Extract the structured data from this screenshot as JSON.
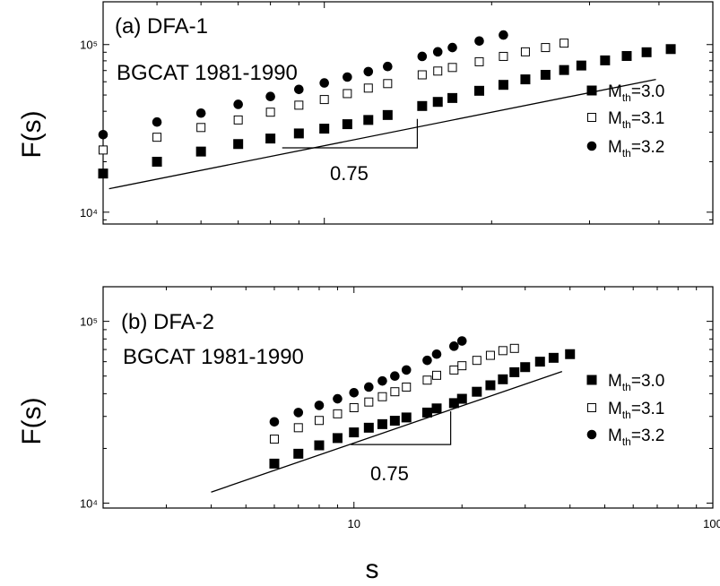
{
  "chart_data": [
    {
      "type": "scatter",
      "panel": "(a)",
      "method": "DFA-1",
      "subtitle": "BGCAT 1981-1990",
      "ylabel": "F(s)",
      "xlabel": "",
      "xscale": "log",
      "yscale": "log",
      "xlim": [
        4,
        50
      ],
      "ylim": [
        8500,
        180000
      ],
      "yticks": [
        {
          "v": 10000,
          "label": "10⁴"
        },
        {
          "v": 100000,
          "label": "10⁵"
        }
      ],
      "xticks": [],
      "slope_label": "0.75",
      "fit_line": {
        "x": [
          4.1,
          39.5
        ],
        "y": [
          13800,
          62000
        ]
      },
      "slope_triangle": {
        "x1": 8.4,
        "x2": 14.7,
        "y1": 24200,
        "y2": 36000
      },
      "legend_position": "right",
      "series": [
        {
          "name": "M_th=3.0",
          "marker": "square-filled",
          "x": [
            4,
            5,
            6,
            7,
            8,
            9,
            10,
            11,
            12,
            13,
            15,
            16,
            17,
            19,
            21,
            23,
            25,
            27,
            29,
            32,
            35,
            38,
            42
          ],
          "y": [
            17000,
            20000,
            23000,
            25500,
            27500,
            29500,
            31500,
            33500,
            35500,
            38000,
            43000,
            45500,
            48000,
            53000,
            57500,
            62000,
            66000,
            70500,
            75000,
            80500,
            85500,
            90000,
            94000
          ]
        },
        {
          "name": "M_th=3.1",
          "marker": "square-open",
          "x": [
            4,
            5,
            6,
            7,
            8,
            9,
            10,
            11,
            12,
            13,
            15,
            16,
            17,
            19,
            21,
            23,
            25,
            27
          ],
          "y": [
            23500,
            28000,
            32000,
            35500,
            39500,
            43500,
            47000,
            51000,
            55000,
            58500,
            66000,
            69500,
            73000,
            79000,
            85000,
            90500,
            96000,
            102000
          ]
        },
        {
          "name": "M_th=3.2",
          "marker": "circle-filled",
          "x": [
            4,
            5,
            6,
            7,
            8,
            9,
            10,
            11,
            12,
            13,
            15,
            16,
            17,
            19,
            21
          ],
          "y": [
            29000,
            34500,
            39000,
            44000,
            49000,
            54000,
            59000,
            64000,
            69000,
            74000,
            85000,
            90500,
            96000,
            105000,
            114000
          ]
        }
      ]
    },
    {
      "type": "scatter",
      "panel": "(b)",
      "method": "DFA-2",
      "subtitle": "BGCAT 1981-1990",
      "ylabel": "F(s)",
      "xlabel": "s",
      "xscale": "log",
      "yscale": "log",
      "xlim": [
        2,
        100
      ],
      "ylim": [
        9400,
        155000
      ],
      "yticks": [
        {
          "v": 10000,
          "label": "10⁴"
        },
        {
          "v": 100000,
          "label": "10⁵"
        }
      ],
      "xticks": [
        {
          "v": 10,
          "label": "10"
        },
        {
          "v": 100,
          "label": "100"
        }
      ],
      "slope_label": "0.75",
      "fit_line": {
        "x": [
          4,
          38
        ],
        "y": [
          11500,
          53000
        ]
      },
      "slope_triangle": {
        "x1": 9.8,
        "x2": 18.6,
        "y1": 21000,
        "y2": 32000
      },
      "legend_position": "right",
      "series": [
        {
          "name": "M_th=3.0",
          "marker": "square-filled",
          "x": [
            6,
            7,
            8,
            9,
            10,
            11,
            12,
            13,
            14,
            16,
            17,
            19,
            20,
            22,
            24,
            26,
            28,
            30,
            33,
            36,
            40
          ],
          "y": [
            16500,
            18700,
            20800,
            22800,
            24500,
            26000,
            27200,
            28400,
            29600,
            31500,
            33200,
            35500,
            37500,
            41000,
            44500,
            48000,
            52500,
            56000,
            60000,
            63000,
            66000
          ]
        },
        {
          "name": "M_th=3.1",
          "marker": "square-open",
          "x": [
            6,
            7,
            8,
            9,
            10,
            11,
            12,
            13,
            14,
            16,
            17,
            19,
            20,
            22,
            24,
            26,
            28
          ],
          "y": [
            22500,
            26000,
            28500,
            31000,
            33500,
            36000,
            38500,
            41000,
            43500,
            47500,
            50500,
            54000,
            57000,
            61000,
            65000,
            69000,
            71000
          ]
        },
        {
          "name": "M_th=3.2",
          "marker": "circle-filled",
          "x": [
            6,
            7,
            8,
            9,
            10,
            11,
            12,
            13,
            14,
            16,
            17,
            19,
            20
          ],
          "y": [
            28000,
            31500,
            34500,
            37500,
            40500,
            43500,
            47000,
            50000,
            54000,
            61000,
            66000,
            73000,
            78000
          ]
        }
      ]
    }
  ]
}
